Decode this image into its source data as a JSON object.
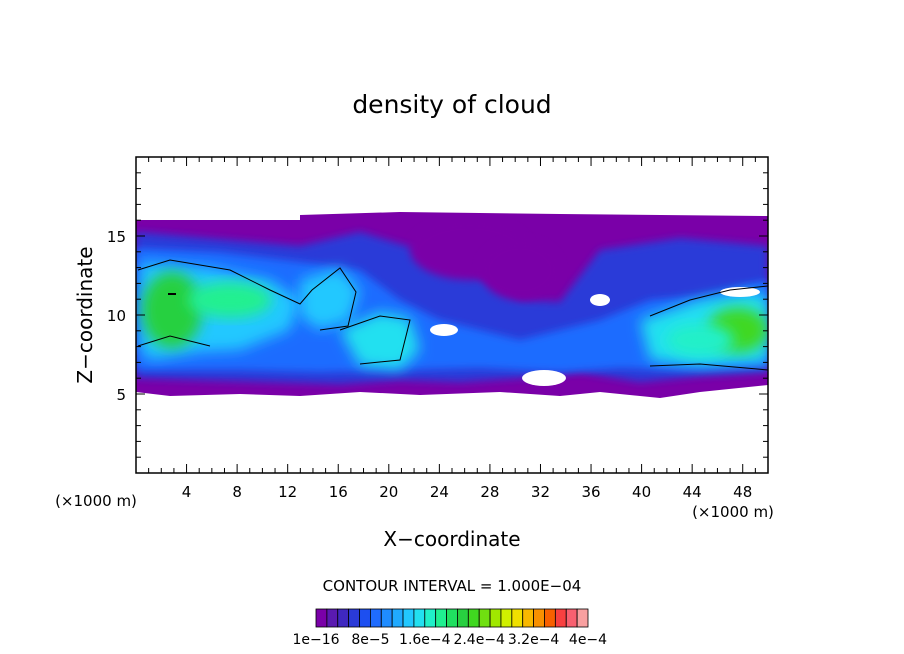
{
  "chart_data": {
    "type": "heatmap",
    "title": "density of cloud",
    "xlabel": "X−coordinate",
    "ylabel": "Z−coordinate",
    "x_unit_left": "(×1000 m)",
    "x_unit_right": "(×1000 m)",
    "xlim": [
      0,
      50
    ],
    "ylim": [
      0,
      20
    ],
    "x_ticks": [
      4,
      8,
      12,
      16,
      20,
      24,
      28,
      32,
      36,
      40,
      44,
      48
    ],
    "y_ticks": [
      5,
      10,
      15
    ],
    "contour_interval_text": "CONTOUR INTERVAL = 1.000E−04",
    "colorbar": {
      "colors": [
        "#7a00a8",
        "#5a1ab0",
        "#3f28c0",
        "#2a3ad8",
        "#1d4ff0",
        "#1f6cff",
        "#1f8cff",
        "#20aaff",
        "#22c8ff",
        "#22e0f0",
        "#20f0c8",
        "#20f090",
        "#20e060",
        "#28d040",
        "#40d820",
        "#70e010",
        "#a0e800",
        "#d0f000",
        "#f0e000",
        "#f8b800",
        "#f89000",
        "#f86000",
        "#f84040",
        "#f86070",
        "#f8a0a0"
      ],
      "labels": [
        "1e−16",
        "8e−5",
        "1.6e−4",
        "2.4e−4",
        "3.2e−4",
        "4e−4"
      ]
    },
    "cloud_layer": {
      "base_z_km": 5,
      "top_z_km": 16,
      "dense_cores": [
        {
          "x_km": 3,
          "z_km": 10.5,
          "level": "high"
        },
        {
          "x_km": 17,
          "z_km": 10.5,
          "level": "medium"
        },
        {
          "x_km": 20,
          "z_km": 8,
          "level": "medium"
        },
        {
          "x_km": 46,
          "z_km": 9,
          "level": "high"
        }
      ]
    }
  }
}
